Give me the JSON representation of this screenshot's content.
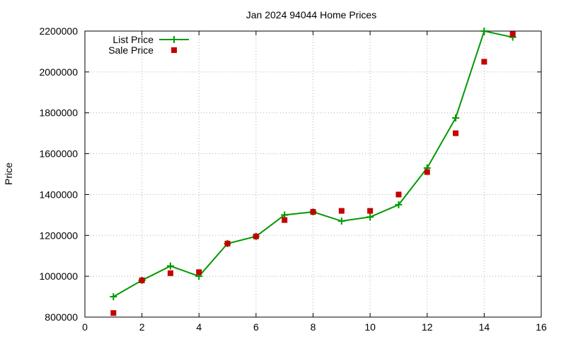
{
  "chart_data": {
    "type": "line",
    "title": "Jan 2024 94044 Home Prices",
    "xlabel": "",
    "ylabel": "Price",
    "xlim": [
      0,
      16
    ],
    "ylim": [
      800000,
      2200000
    ],
    "x_ticks": [
      0,
      2,
      4,
      6,
      8,
      10,
      12,
      14,
      16
    ],
    "y_ticks": [
      800000,
      1000000,
      1200000,
      1400000,
      1600000,
      1800000,
      2000000,
      2200000
    ],
    "grid": true,
    "legend_position": "top-left",
    "series": [
      {
        "name": "List Price",
        "style": "line-with-plus-markers",
        "color": "#009900",
        "x": [
          1,
          2,
          3,
          4,
          5,
          6,
          7,
          8,
          9,
          10,
          11,
          12,
          13,
          14,
          15
        ],
        "y": [
          900000,
          980000,
          1050000,
          1000000,
          1160000,
          1195000,
          1300000,
          1315000,
          1270000,
          1290000,
          1350000,
          1530000,
          1775000,
          2200000,
          2170000
        ]
      },
      {
        "name": "Sale Price",
        "style": "square-markers",
        "color": "#c40000",
        "x": [
          1,
          2,
          3,
          4,
          5,
          6,
          7,
          8,
          9,
          10,
          11,
          12,
          13,
          14,
          15
        ],
        "y": [
          820000,
          980000,
          1015000,
          1020000,
          1160000,
          1195000,
          1275000,
          1315000,
          1320000,
          1320000,
          1400000,
          1510000,
          1700000,
          2050000,
          2185000
        ]
      }
    ]
  }
}
